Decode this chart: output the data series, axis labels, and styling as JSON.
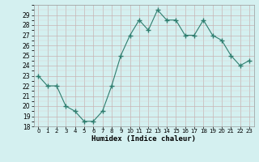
{
  "x": [
    0,
    1,
    2,
    3,
    4,
    5,
    6,
    7,
    8,
    9,
    10,
    11,
    12,
    13,
    14,
    15,
    16,
    17,
    18,
    19,
    20,
    21,
    22,
    23
  ],
  "y": [
    23.0,
    22.0,
    22.0,
    20.0,
    19.5,
    18.5,
    18.5,
    19.5,
    22.0,
    25.0,
    27.0,
    28.5,
    27.5,
    29.5,
    28.5,
    28.5,
    27.0,
    27.0,
    28.5,
    27.0,
    26.5,
    25.0,
    24.0,
    24.5
  ],
  "xlabel": "Humidex (Indice chaleur)",
  "line_color": "#2e7d6e",
  "marker_color": "#2e7d6e",
  "bg_color": "#d4f0f0",
  "grid_major_color": "#c8b4b4",
  "grid_minor_color": "#ddd0d0",
  "ylim": [
    18,
    30
  ],
  "xlim": [
    -0.5,
    23.5
  ],
  "yticks": [
    18,
    19,
    20,
    21,
    22,
    23,
    24,
    25,
    26,
    27,
    28,
    29
  ],
  "xtick_labels": [
    "0",
    "1",
    "2",
    "3",
    "4",
    "5",
    "6",
    "7",
    "8",
    "9",
    "10",
    "11",
    "12",
    "13",
    "14",
    "15",
    "16",
    "17",
    "18",
    "19",
    "20",
    "21",
    "22",
    "23"
  ]
}
